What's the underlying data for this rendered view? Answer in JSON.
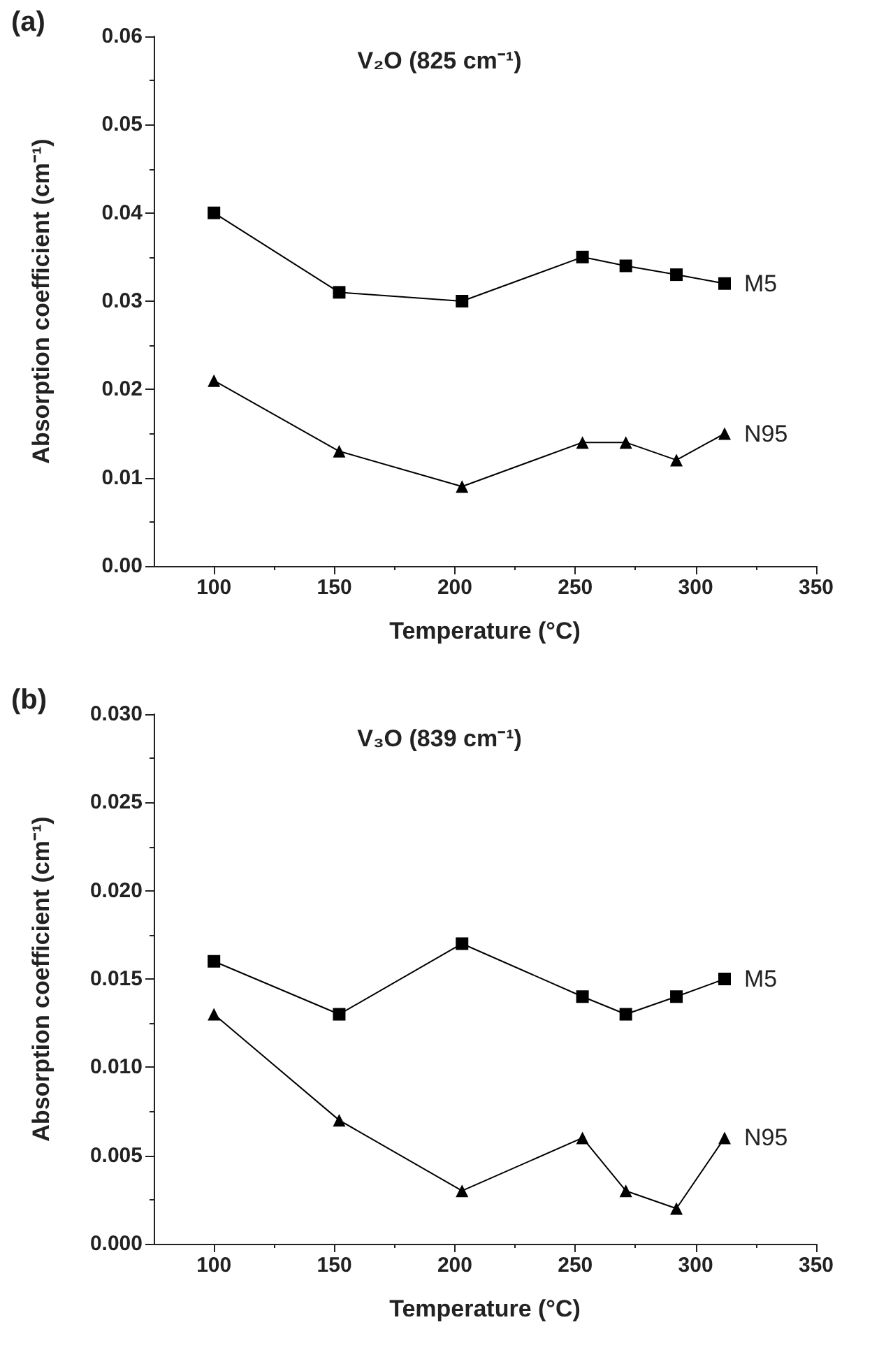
{
  "chart_data": [
    {
      "type": "line",
      "title": "V₂O (825 cm⁻¹)",
      "xlabel": "Temperature (°C)",
      "ylabel": "Absorption coefficient (cm⁻¹)",
      "annotations": [
        "(a)"
      ],
      "x": [
        100,
        152,
        203,
        253,
        271,
        292,
        312
      ],
      "series": [
        {
          "name": "M5",
          "color": "#000000",
          "marker": "square",
          "values": [
            0.04,
            0.031,
            0.03,
            0.035,
            0.034,
            0.033,
            0.032
          ]
        },
        {
          "name": "N95",
          "color": "#000000",
          "marker": "triangle",
          "values": [
            0.021,
            0.013,
            0.009,
            0.014,
            0.014,
            0.012,
            0.015
          ]
        }
      ],
      "xlim": [
        75,
        350
      ],
      "xticks": [
        100,
        150,
        200,
        250,
        300,
        350
      ],
      "ylim": [
        0,
        0.06
      ],
      "yticks": [
        {
          "value": 0,
          "label": "0.00"
        },
        {
          "value": 0.01,
          "label": "0.01"
        },
        {
          "value": 0.02,
          "label": "0.02"
        },
        {
          "value": 0.03,
          "label": "0.03"
        },
        {
          "value": 0.04,
          "label": "0.04"
        },
        {
          "value": 0.05,
          "label": "0.05"
        },
        {
          "value": 0.06,
          "label": "0.06"
        }
      ],
      "grid": false,
      "legend": false,
      "line_style": "solid"
    },
    {
      "type": "line",
      "title": "V₃O (839 cm⁻¹)",
      "xlabel": "Temperature (°C)",
      "ylabel": "Absorption coefficient (cm⁻¹)",
      "annotations": [
        "(b)"
      ],
      "x": [
        100,
        152,
        203,
        253,
        271,
        292,
        312
      ],
      "series": [
        {
          "name": "M5",
          "color": "#000000",
          "marker": "square",
          "values": [
            0.016,
            0.013,
            0.017,
            0.014,
            0.013,
            0.014,
            0.015
          ]
        },
        {
          "name": "N95",
          "color": "#000000",
          "marker": "triangle",
          "values": [
            0.013,
            0.007,
            0.003,
            0.006,
            0.003,
            0.002,
            0.006
          ]
        }
      ],
      "xlim": [
        75,
        350
      ],
      "xticks": [
        100,
        150,
        200,
        250,
        300,
        350
      ],
      "ylim": [
        0,
        0.03
      ],
      "yticks": [
        {
          "value": 0,
          "label": "0.000"
        },
        {
          "value": 0.005,
          "label": "0.005"
        },
        {
          "value": 0.01,
          "label": "0.010"
        },
        {
          "value": 0.015,
          "label": "0.015"
        },
        {
          "value": 0.02,
          "label": "0.020"
        },
        {
          "value": 0.025,
          "label": "0.025"
        },
        {
          "value": 0.03,
          "label": "0.030"
        }
      ],
      "grid": false,
      "legend": false,
      "line_style": "solid"
    }
  ]
}
